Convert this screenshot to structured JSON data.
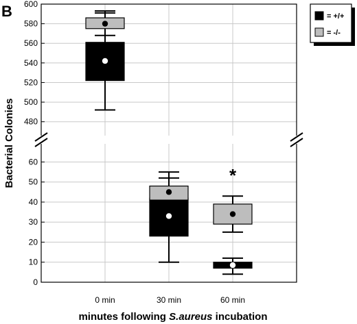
{
  "panel_label": "B",
  "chart_data": {
    "type": "box",
    "title": "",
    "xlabel_parts": [
      {
        "text": "minutes following ",
        "italic": false
      },
      {
        "text": "S.aureus",
        "italic": true
      },
      {
        "text": " incubation",
        "italic": false
      }
    ],
    "ylabel": "Bacterial Colonies",
    "categories": [
      "0 min",
      "30 min",
      "60 min"
    ],
    "y_axis_segments": [
      {
        "name": "upper",
        "ylim": [
          470,
          600
        ],
        "ticks": [
          480,
          500,
          520,
          540,
          560,
          580,
          600
        ]
      },
      {
        "name": "lower",
        "ylim": [
          0,
          67
        ],
        "ticks": [
          0,
          10,
          20,
          30,
          40,
          50,
          60
        ]
      }
    ],
    "axis_break": true,
    "grid": true,
    "legend_position": "top-right",
    "series": [
      {
        "name": "= +/+",
        "color": "#000000",
        "marker_color": "#ffffff",
        "boxes": [
          {
            "category": "0 min",
            "segment": "upper",
            "whisker_low": 492,
            "q1": 522,
            "mean": 542,
            "q3": 561,
            "whisker_high": 591
          },
          {
            "category": "30 min",
            "segment": "lower",
            "whisker_low": 10,
            "q1": 23,
            "mean": 33,
            "q3": 42,
            "whisker_high": 52
          },
          {
            "category": "60 min",
            "segment": "lower",
            "whisker_low": 4,
            "q1": 7,
            "mean": 8.5,
            "q3": 10,
            "whisker_high": 12
          }
        ]
      },
      {
        "name": "= -/-",
        "color": "#bdbdbd",
        "marker_color": "#000000",
        "boxes": [
          {
            "category": "0 min",
            "segment": "upper",
            "whisker_low": 568,
            "q1": 575,
            "mean": 580,
            "q3": 586,
            "whisker_high": 593
          },
          {
            "category": "30 min",
            "segment": "lower",
            "whisker_low": 41,
            "q1": 41,
            "mean": 45,
            "q3": 48,
            "whisker_high": 55
          },
          {
            "category": "60 min",
            "segment": "lower",
            "whisker_low": 25,
            "q1": 29,
            "mean": 34,
            "q3": 39,
            "whisker_high": 43
          }
        ]
      }
    ],
    "annotations": [
      {
        "text": "*",
        "category": "60 min",
        "segment": "lower",
        "y": 55
      }
    ]
  }
}
